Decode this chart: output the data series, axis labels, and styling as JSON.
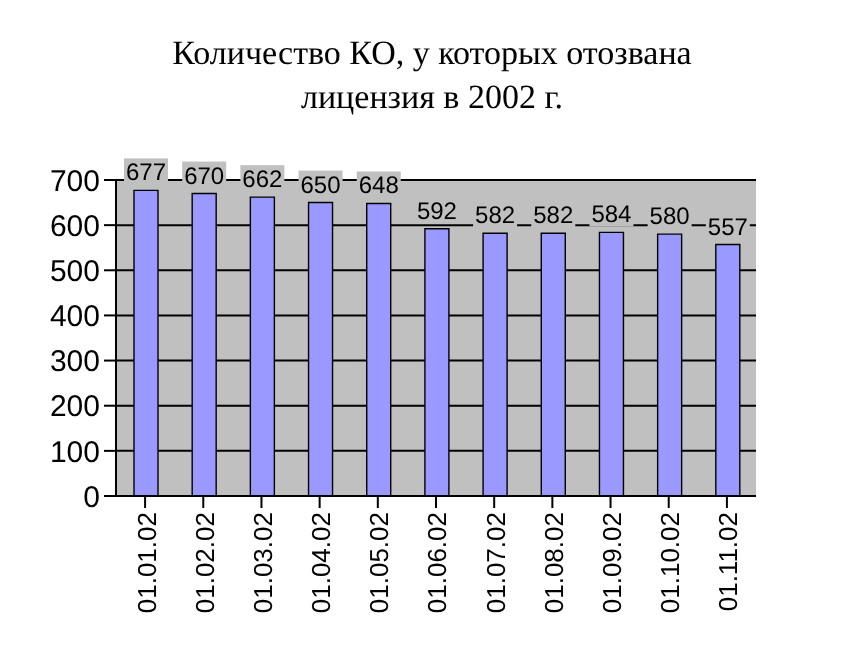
{
  "chart_data": {
    "type": "bar",
    "title": "Количество КО, у которых отозвана лицензия в 2002 г.",
    "categories": [
      "01.01.02",
      "01.02.02",
      "01.03.02",
      "01.04.02",
      "01.05.02",
      "01.06.02",
      "01.07.02",
      "01.08.02",
      "01.09.02",
      "01.10.02",
      "01.11.02"
    ],
    "values": [
      677,
      670,
      662,
      650,
      648,
      592,
      582,
      582,
      584,
      580,
      557
    ],
    "color": "#9999ff",
    "ylim": [
      0,
      700
    ],
    "yticks": [
      0,
      100,
      200,
      300,
      400,
      500,
      600,
      700
    ],
    "grid": "y",
    "data_labels": true
  }
}
